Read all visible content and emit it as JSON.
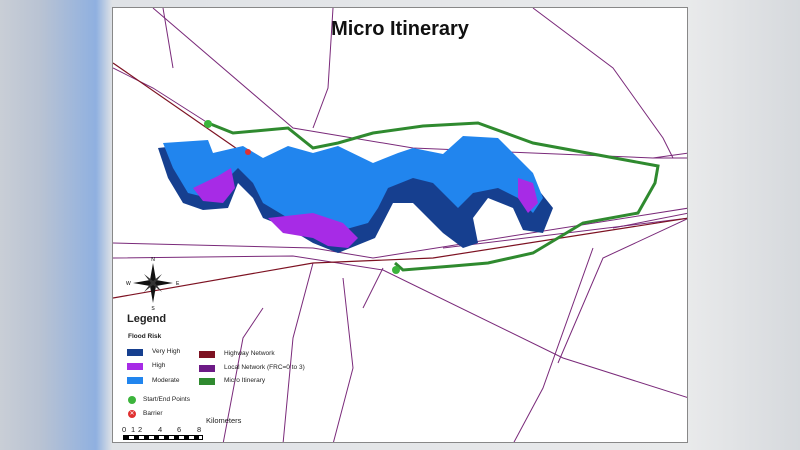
{
  "title": "Micro Itinerary",
  "north_arrow": {
    "n": "N",
    "s": "S",
    "e": "E",
    "w": "W"
  },
  "legend": {
    "title": "Legend",
    "flood_risk_title": "Flood Risk",
    "flood_risk": [
      {
        "label": "Very High",
        "color": "#163f8f"
      },
      {
        "label": "High",
        "color": "#a72be6"
      },
      {
        "label": "Moderate",
        "color": "#2185ee"
      }
    ],
    "networks": [
      {
        "label": "Highway Network",
        "color": "#7d1222"
      },
      {
        "label": "Local Network (FRC=0 to 3)",
        "color": "#6d1a86"
      },
      {
        "label": "Micro Itinerary",
        "color": "#2f8a2f"
      }
    ],
    "points": [
      {
        "label": "Start/End Points",
        "color": "#3cb43c",
        "icon": "green-circle-icon"
      },
      {
        "label": "Barrier",
        "color": "#e03030",
        "icon": "red-x-circle-icon"
      }
    ]
  },
  "scale_bar": {
    "unit": "Kilometers",
    "ticks": [
      "0",
      "1",
      "2",
      "4",
      "6",
      "8"
    ]
  }
}
